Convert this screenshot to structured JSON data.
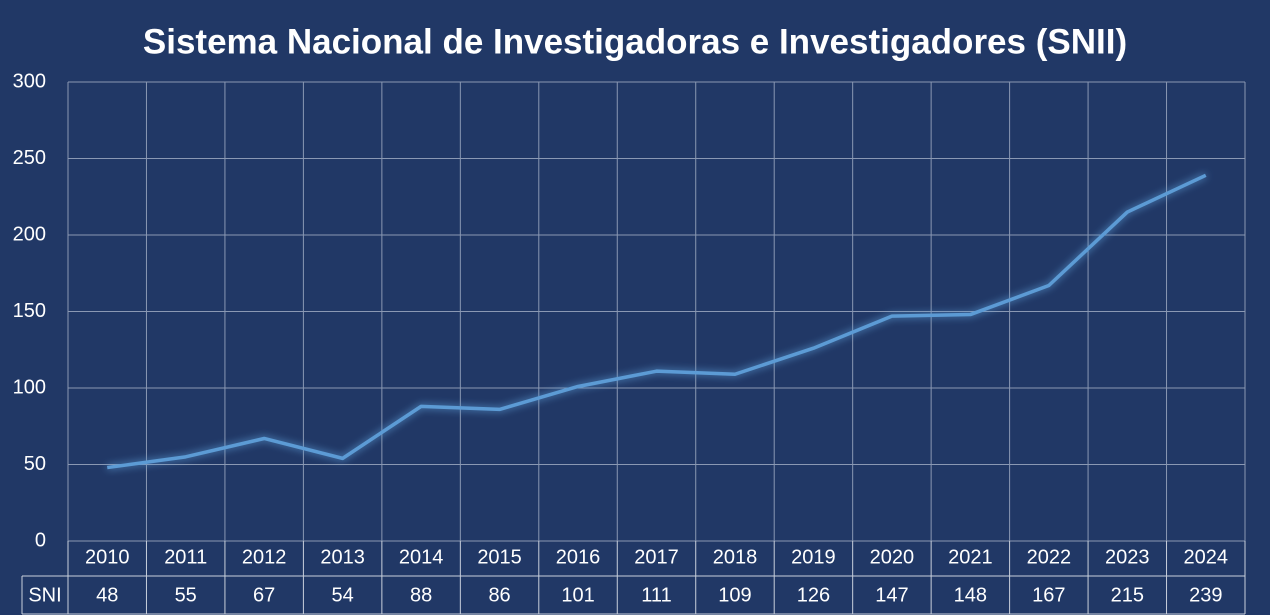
{
  "chart_data": {
    "type": "line",
    "title": "Sistema Nacional de Investigadoras e Investigadores (SNII)",
    "categories": [
      "2010",
      "2011",
      "2012",
      "2013",
      "2014",
      "2015",
      "2016",
      "2017",
      "2018",
      "2019",
      "2020",
      "2021",
      "2022",
      "2023",
      "2024"
    ],
    "series": [
      {
        "name": "SNI",
        "color": "#5b9bd5",
        "values": [
          48,
          55,
          67,
          54,
          88,
          86,
          101,
          111,
          109,
          126,
          147,
          148,
          167,
          215,
          239
        ]
      }
    ],
    "ylim": [
      0,
      300
    ],
    "yticks": [
      0,
      50,
      100,
      150,
      200,
      250,
      300
    ],
    "grid": true
  }
}
